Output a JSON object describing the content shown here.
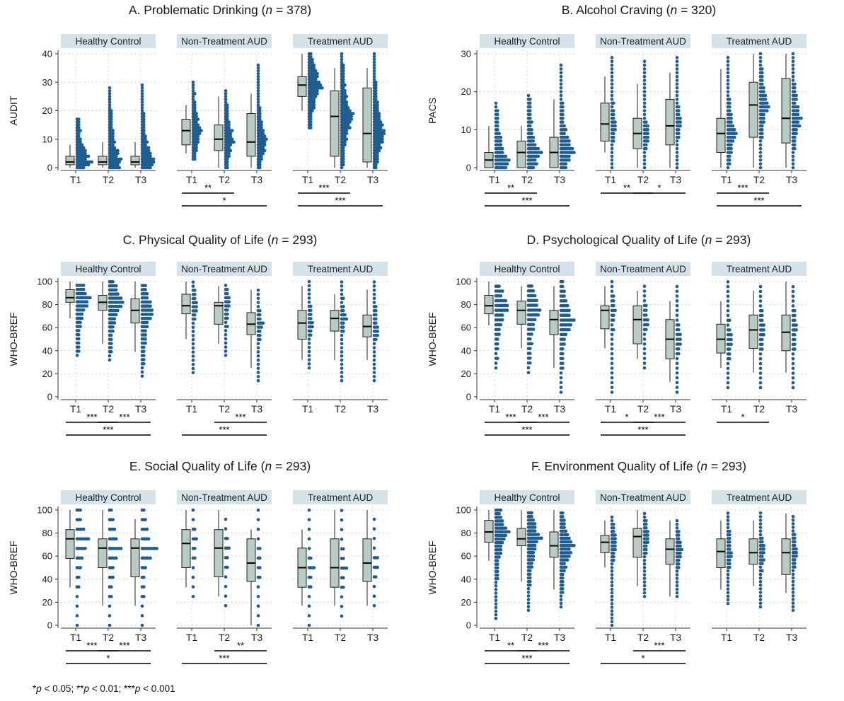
{
  "colors": {
    "box_fill": "#b8cbc5",
    "dot": "#1f5c8f",
    "header_fill": "#d4e3ea",
    "line": "#222222",
    "grid": "#c8c8c8"
  },
  "footnote": {
    "p1_label": "p",
    "p1_text": " < 0.05; **",
    "p2_label": "p",
    "p2_text": " < 0.01; ***",
    "p3_label": "p",
    "p3_text": " < 0.001",
    "prefix": "*"
  },
  "chart_data": [
    {
      "type": "box",
      "title_prefix": "A. Problematic Drinking (",
      "title_n": "n",
      "title_suffix": " = 378)",
      "ylabel": "AUDIT",
      "ylim": [
        0,
        40
      ],
      "yticks": [
        0,
        10,
        20,
        30,
        40
      ],
      "panels": [
        "Healthy Control",
        "Non-Treatment AUD",
        "Treatment AUD"
      ],
      "categories": [
        "T1",
        "T2",
        "T3"
      ],
      "boxes": [
        [
          [
            0,
            1,
            2,
            4,
            8
          ],
          [
            0,
            1,
            2,
            4,
            9
          ],
          [
            0,
            1,
            2,
            4,
            9
          ]
        ],
        [
          [
            5,
            8,
            13,
            17,
            22
          ],
          [
            0,
            6,
            10,
            15,
            25
          ],
          [
            0,
            4,
            9,
            19,
            26
          ]
        ],
        [
          [
            20,
            25,
            29,
            32,
            40
          ],
          [
            0,
            4,
            18,
            27,
            35
          ],
          [
            0,
            2,
            12,
            28,
            35
          ]
        ]
      ],
      "dots": [
        {
          "min": 0,
          "max": 17,
          "step": 1,
          "density": "high"
        },
        {
          "min": 0,
          "max": 28,
          "step": 1,
          "density": "high"
        },
        {
          "min": 0,
          "max": 29,
          "step": 1,
          "density": "high"
        },
        {
          "min": 3,
          "max": 30,
          "step": 1,
          "density": "medium"
        },
        {
          "min": 0,
          "max": 27,
          "step": 1,
          "density": "medium"
        },
        {
          "min": 0,
          "max": 36,
          "step": 1,
          "density": "medium"
        },
        {
          "min": 14,
          "max": 40,
          "step": 1,
          "density": "high"
        },
        {
          "min": 0,
          "max": 40,
          "step": 1,
          "density": "high"
        },
        {
          "min": 0,
          "max": 40,
          "step": 1,
          "density": "high"
        }
      ],
      "significance": [
        [],
        [
          {
            "from": "T1",
            "to": "T2",
            "label": "**"
          },
          {
            "from": "T1",
            "to": "T3",
            "label": "*"
          }
        ],
        [
          {
            "from": "T1",
            "to": "T2",
            "label": "***"
          },
          {
            "from": "T1",
            "to": "T3",
            "label": "***"
          }
        ]
      ]
    },
    {
      "type": "box",
      "title_prefix": "B. Alcohol Craving (",
      "title_n": "n",
      "title_suffix": " = 320)",
      "ylabel": "PACS",
      "ylim": [
        0,
        30
      ],
      "yticks": [
        0,
        10,
        20,
        30
      ],
      "panels": [
        "Healthy Control",
        "Non-Treatment AUD",
        "Treatment AUD"
      ],
      "categories": [
        "T1",
        "T2",
        "T3"
      ],
      "boxes": [
        [
          [
            0,
            0,
            2,
            4,
            11
          ],
          [
            0,
            0,
            4,
            7,
            11
          ],
          [
            0,
            0,
            4,
            8,
            18
          ]
        ],
        [
          [
            4,
            7,
            11.5,
            17,
            24
          ],
          [
            0,
            5,
            9,
            13,
            22
          ],
          [
            0,
            6,
            11,
            18,
            25
          ]
        ],
        [
          [
            0,
            4,
            9,
            13,
            26
          ],
          [
            0,
            8,
            16.5,
            22.5,
            30
          ],
          [
            0,
            6.5,
            13,
            23.5,
            30
          ]
        ]
      ],
      "dots": [
        {
          "min": 0,
          "max": 17,
          "step": 1,
          "density": "high"
        },
        {
          "min": 0,
          "max": 19,
          "step": 1,
          "density": "high"
        },
        {
          "min": 0,
          "max": 27,
          "step": 1,
          "density": "high"
        },
        {
          "min": 0,
          "max": 29,
          "step": 1,
          "density": "low"
        },
        {
          "min": 0,
          "max": 28,
          "step": 1,
          "density": "low"
        },
        {
          "min": 0,
          "max": 29,
          "step": 1,
          "density": "low"
        },
        {
          "min": 0,
          "max": 29,
          "step": 1,
          "density": "medium"
        },
        {
          "min": 0,
          "max": 30,
          "step": 1,
          "density": "medium"
        },
        {
          "min": 0,
          "max": 30,
          "step": 1,
          "density": "medium"
        }
      ],
      "significance": [
        [
          {
            "from": "T1",
            "to": "T2",
            "label": "**"
          },
          {
            "from": "T1",
            "to": "T3",
            "label": "***"
          }
        ],
        [
          {
            "from": "T1",
            "to": "T2",
            "label": "**"
          },
          {
            "from": "T2",
            "to": "T3",
            "label": "*"
          }
        ],
        [
          {
            "from": "T1",
            "to": "T2",
            "label": "***"
          },
          {
            "from": "T1",
            "to": "T3",
            "label": "***"
          }
        ]
      ]
    },
    {
      "type": "box",
      "title_prefix": "C. Physical Quality of Life (",
      "title_n": "n",
      "title_suffix": " = 293)",
      "ylabel": "WHO-BREF",
      "ylim": [
        0,
        100
      ],
      "yticks": [
        0,
        20,
        40,
        60,
        80,
        100
      ],
      "panels": [
        "Healthy Control",
        "Non-Treatment AUD",
        "Treatment AUD"
      ],
      "categories": [
        "T1",
        "T2",
        "T3"
      ],
      "boxes": [
        [
          [
            68,
            82,
            86,
            93,
            100
          ],
          [
            46,
            75,
            82,
            88,
            100
          ],
          [
            39,
            64,
            75,
            85,
            100
          ]
        ],
        [
          [
            50,
            72,
            79,
            89,
            100
          ],
          [
            46,
            63,
            79,
            82,
            96
          ],
          [
            25,
            54,
            63,
            73,
            93
          ]
        ],
        [
          [
            32,
            50,
            64,
            75,
            96
          ],
          [
            32,
            57,
            68,
            75,
            89
          ],
          [
            32,
            52,
            61,
            71,
            93
          ]
        ]
      ],
      "dots": [
        {
          "min": 36,
          "max": 100,
          "step": 3.57,
          "density": "high"
        },
        {
          "min": 32,
          "max": 100,
          "step": 3.57,
          "density": "high"
        },
        {
          "min": 18,
          "max": 100,
          "step": 3.57,
          "density": "high"
        },
        {
          "min": 21,
          "max": 100,
          "step": 3.57,
          "density": "low"
        },
        {
          "min": 36,
          "max": 100,
          "step": 3.57,
          "density": "low"
        },
        {
          "min": 14,
          "max": 96,
          "step": 3.57,
          "density": "low"
        },
        {
          "min": 25,
          "max": 100,
          "step": 3.57,
          "density": "low"
        },
        {
          "min": 14,
          "max": 100,
          "step": 3.57,
          "density": "low"
        },
        {
          "min": 14,
          "max": 100,
          "step": 3.57,
          "density": "low"
        }
      ],
      "significance": [
        [
          {
            "from": "T1",
            "to": "T2",
            "label": "***"
          },
          {
            "from": "T2",
            "to": "T3",
            "label": "***"
          },
          {
            "from": "T1",
            "to": "T3",
            "label": "***"
          }
        ],
        [
          {
            "from": "T2",
            "to": "T3",
            "label": "***"
          },
          {
            "from": "T1",
            "to": "T3",
            "label": "***"
          }
        ],
        []
      ]
    },
    {
      "type": "box",
      "title_prefix": "D. Psychological Quality of Life (",
      "title_n": "n",
      "title_suffix": " = 293)",
      "ylabel": "WHO-BREF",
      "ylim": [
        0,
        100
      ],
      "yticks": [
        0,
        20,
        40,
        60,
        80,
        100
      ],
      "panels": [
        "Healthy Control",
        "Non-Treatment AUD",
        "Treatment AUD"
      ],
      "categories": [
        "T1",
        "T2",
        "T3"
      ],
      "boxes": [
        [
          [
            62,
            72,
            79,
            88,
            100
          ],
          [
            42,
            63,
            75,
            83,
            96
          ],
          [
            25,
            54,
            67,
            75,
            96
          ]
        ],
        [
          [
            42,
            59,
            75,
            79,
            96
          ],
          [
            33,
            46,
            67,
            79,
            92
          ],
          [
            13,
            33,
            50,
            67,
            83
          ]
        ],
        [
          [
            25,
            38,
            50,
            63,
            83
          ],
          [
            21,
            42,
            58,
            71,
            92
          ],
          [
            21,
            40,
            56,
            71,
            100
          ]
        ]
      ],
      "dots": [
        {
          "min": 25,
          "max": 100,
          "step": 4.17,
          "density": "high"
        },
        {
          "min": 21,
          "max": 100,
          "step": 4.17,
          "density": "high"
        },
        {
          "min": 4,
          "max": 100,
          "step": 4.17,
          "density": "high"
        },
        {
          "min": 4,
          "max": 100,
          "step": 4.17,
          "density": "low"
        },
        {
          "min": 25,
          "max": 100,
          "step": 4.17,
          "density": "low"
        },
        {
          "min": 4,
          "max": 96,
          "step": 4.17,
          "density": "low"
        },
        {
          "min": 8,
          "max": 100,
          "step": 4.17,
          "density": "low"
        },
        {
          "min": 8,
          "max": 96,
          "step": 4.17,
          "density": "low"
        },
        {
          "min": 8,
          "max": 96,
          "step": 4.17,
          "density": "low"
        }
      ],
      "significance": [
        [
          {
            "from": "T1",
            "to": "T2",
            "label": "***"
          },
          {
            "from": "T2",
            "to": "T3",
            "label": "***"
          },
          {
            "from": "T1",
            "to": "T3",
            "label": "***"
          }
        ],
        [
          {
            "from": "T1",
            "to": "T2",
            "label": "*"
          },
          {
            "from": "T2",
            "to": "T3",
            "label": "***"
          },
          {
            "from": "T1",
            "to": "T3",
            "label": "***"
          }
        ],
        [
          {
            "from": "T1",
            "to": "T2",
            "label": "*"
          }
        ]
      ]
    },
    {
      "type": "box",
      "title_prefix": "E. Social Quality of Life (",
      "title_n": "n",
      "title_suffix": " = 293)",
      "ylabel": "WHO-BREF",
      "ylim": [
        0,
        100
      ],
      "yticks": [
        0,
        20,
        40,
        60,
        80,
        100
      ],
      "panels": [
        "Healthy Control",
        "Non-Treatment AUD",
        "Treatment AUD"
      ],
      "categories": [
        "T1",
        "T2",
        "T3"
      ],
      "boxes": [
        [
          [
            33,
            58,
            75,
            83,
            100
          ],
          [
            17,
            50,
            67,
            75,
            100
          ],
          [
            17,
            42,
            67,
            75,
            92
          ]
        ],
        [
          [
            33,
            50,
            71,
            83,
            100
          ],
          [
            25,
            42,
            67,
            83,
            100
          ],
          [
            0,
            38,
            54,
            75,
            83
          ]
        ],
        [
          [
            17,
            33,
            50,
            67,
            83
          ],
          [
            17,
            33,
            50,
            75,
            100
          ],
          [
            17,
            38,
            54,
            75,
            100
          ]
        ]
      ],
      "dots": [
        {
          "min": 0,
          "max": 100,
          "step": 8.33,
          "density": "high"
        },
        {
          "min": 0,
          "max": 100,
          "step": 8.33,
          "density": "high"
        },
        {
          "min": 0,
          "max": 100,
          "step": 8.33,
          "density": "high"
        },
        {
          "min": 25,
          "max": 100,
          "step": 8.33,
          "density": "low"
        },
        {
          "min": 17,
          "max": 100,
          "step": 8.33,
          "density": "low"
        },
        {
          "min": 0,
          "max": 100,
          "step": 8.33,
          "density": "low"
        },
        {
          "min": 0,
          "max": 100,
          "step": 8.33,
          "density": "low"
        },
        {
          "min": 8,
          "max": 100,
          "step": 8.33,
          "density": "low"
        },
        {
          "min": 17,
          "max": 100,
          "step": 8.33,
          "density": "low"
        }
      ],
      "significance": [
        [
          {
            "from": "T1",
            "to": "T2",
            "label": "***"
          },
          {
            "from": "T2",
            "to": "T3",
            "label": "***"
          },
          {
            "from": "T1",
            "to": "T3",
            "label": "*"
          }
        ],
        [
          {
            "from": "T2",
            "to": "T3",
            "label": "**"
          },
          {
            "from": "T1",
            "to": "T3",
            "label": "***"
          }
        ],
        []
      ]
    },
    {
      "type": "box",
      "title_prefix": "F. Environment Quality of Life (",
      "title_n": "n",
      "title_suffix": " = 293)",
      "ylabel": "WHO-BREF",
      "ylim": [
        0,
        100
      ],
      "yticks": [
        0,
        20,
        40,
        60,
        80,
        100
      ],
      "panels": [
        "Healthy Control",
        "Non-Treatment AUD",
        "Treatment AUD"
      ],
      "categories": [
        "T1",
        "T2",
        "T3"
      ],
      "boxes": [
        [
          [
            56,
            72,
            81,
            91,
            100
          ],
          [
            38,
            69,
            75,
            84,
            100
          ],
          [
            31,
            59,
            69,
            81,
            100
          ]
        ],
        [
          [
            50,
            63,
            72,
            78,
            91
          ],
          [
            34,
            59,
            77,
            84,
            100
          ],
          [
            25,
            53,
            66,
            75,
            91
          ]
        ],
        [
          [
            31,
            50,
            64,
            75,
            91
          ],
          [
            34,
            53,
            63,
            75,
            91
          ],
          [
            28,
            44,
            63,
            75,
            97
          ]
        ]
      ],
      "dots": [
        {
          "min": 6,
          "max": 100,
          "step": 3.13,
          "density": "high"
        },
        {
          "min": 13,
          "max": 100,
          "step": 3.13,
          "density": "high"
        },
        {
          "min": 16,
          "max": 100,
          "step": 3.13,
          "density": "high"
        },
        {
          "min": 0,
          "max": 94,
          "step": 3.13,
          "density": "low"
        },
        {
          "min": 25,
          "max": 100,
          "step": 3.13,
          "density": "low"
        },
        {
          "min": 25,
          "max": 91,
          "step": 3.13,
          "density": "low"
        },
        {
          "min": 19,
          "max": 100,
          "step": 3.13,
          "density": "low"
        },
        {
          "min": 16,
          "max": 100,
          "step": 3.13,
          "density": "low"
        },
        {
          "min": 13,
          "max": 97,
          "step": 3.13,
          "density": "low"
        }
      ],
      "significance": [
        [
          {
            "from": "T1",
            "to": "T2",
            "label": "**"
          },
          {
            "from": "T2",
            "to": "T3",
            "label": "***"
          },
          {
            "from": "T1",
            "to": "T3",
            "label": "***"
          }
        ],
        [
          {
            "from": "T2",
            "to": "T3",
            "label": "***"
          },
          {
            "from": "T1",
            "to": "T3",
            "label": "*"
          }
        ],
        []
      ]
    }
  ]
}
